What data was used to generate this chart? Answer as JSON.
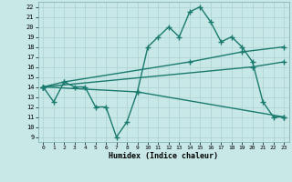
{
  "line1_x": [
    0,
    1,
    2,
    3,
    4,
    5,
    6,
    7,
    8,
    9,
    10,
    11,
    12,
    13,
    14,
    15,
    16,
    17,
    18,
    19,
    20,
    21,
    22,
    23
  ],
  "line1_y": [
    14,
    12.5,
    14.5,
    14,
    14,
    12,
    12,
    9,
    10.5,
    13.5,
    18,
    19,
    20,
    19,
    21.5,
    22,
    20.5,
    18.5,
    19,
    18,
    16.5,
    12.5,
    11,
    11
  ],
  "line2_x": [
    0,
    2,
    14,
    19,
    23
  ],
  "line2_y": [
    14,
    14.5,
    16.5,
    17.5,
    18
  ],
  "line3_x": [
    0,
    20,
    23
  ],
  "line3_y": [
    14,
    16,
    16.5
  ],
  "line4_x": [
    0,
    9,
    23
  ],
  "line4_y": [
    14,
    13.5,
    11
  ],
  "line_color": "#1a7a6e",
  "bg_color": "#c8e8e8",
  "grid_color": "#b0d8d8",
  "xlabel": "Humidex (Indice chaleur)",
  "ylim": [
    8.5,
    22.5
  ],
  "xlim": [
    -0.5,
    23.5
  ],
  "yticks": [
    9,
    10,
    11,
    12,
    13,
    14,
    15,
    16,
    17,
    18,
    19,
    20,
    21,
    22
  ],
  "xticks": [
    0,
    1,
    2,
    3,
    4,
    5,
    6,
    7,
    8,
    9,
    10,
    11,
    12,
    13,
    14,
    15,
    16,
    17,
    18,
    19,
    20,
    21,
    22,
    23
  ],
  "marker": "+",
  "linewidth": 1.0,
  "markersize": 4,
  "markeredgewidth": 1.0
}
